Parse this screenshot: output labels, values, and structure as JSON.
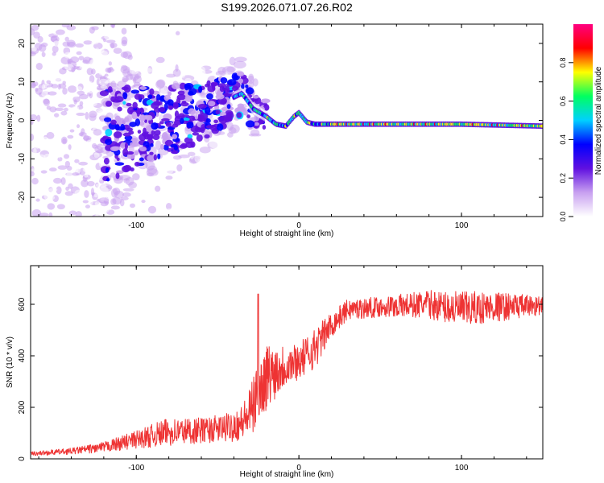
{
  "title": "S199.2026.071.07.26.R02",
  "chart_data": [
    {
      "type": "heatmap",
      "name": "spectrogram",
      "xlabel": "Height of straight line (km)",
      "ylabel": "Frequency (Hz)",
      "xlim": [
        -165,
        150
      ],
      "ylim": [
        -25,
        25
      ],
      "xticks": [
        -100,
        0,
        100
      ],
      "yticks": [
        -20,
        -10,
        0,
        10,
        20
      ],
      "ridge": {
        "description_points_x": [
          -130,
          -100,
          -80,
          -60,
          -40,
          -35,
          -28,
          -20,
          -14,
          -8,
          -3,
          0,
          5,
          10,
          20,
          50,
          100,
          150
        ],
        "description_points_y": [
          -5,
          -2,
          0,
          2,
          6,
          7,
          3,
          1,
          -1,
          -1.5,
          1,
          2,
          -0.5,
          -1,
          -1,
          -1,
          -1,
          -1.5
        ]
      }
    },
    {
      "type": "line",
      "name": "snr",
      "xlabel": "Height of straight line (km)",
      "ylabel": "SNR (10 * v/v)",
      "xlim": [
        -165,
        150
      ],
      "ylim": [
        0,
        750
      ],
      "xticks": [
        -100,
        0,
        100
      ],
      "yticks": [
        0,
        200,
        400,
        600
      ],
      "series": [
        {
          "name": "SNR",
          "color": "#ee3333",
          "trend_x": [
            -165,
            -140,
            -120,
            -100,
            -80,
            -60,
            -45,
            -35,
            -30,
            -25,
            -20,
            -10,
            0,
            10,
            20,
            30,
            50,
            80,
            100,
            120,
            150
          ],
          "trend_y": [
            20,
            30,
            45,
            75,
            105,
            110,
            120,
            140,
            180,
            250,
            320,
            360,
            380,
            430,
            520,
            580,
            590,
            600,
            580,
            590,
            595
          ],
          "spread_y": [
            8,
            12,
            20,
            35,
            55,
            50,
            55,
            70,
            100,
            120,
            130,
            90,
            70,
            80,
            50,
            40,
            40,
            55,
            70,
            60,
            35
          ]
        }
      ]
    }
  ],
  "colorbar": {
    "label": "Normalized spectral amplitude",
    "range": [
      0,
      1
    ],
    "ticks": [
      "0.0",
      "0.2",
      "0.4",
      "0.6",
      "0.8"
    ],
    "tick_values": [
      0,
      0.2,
      0.4,
      0.6,
      0.8
    ],
    "colors": [
      "#ffffff",
      "#c8a0f0",
      "#6010e0",
      "#0000ff",
      "#00d0ff",
      "#00ff60",
      "#ffff00",
      "#ff0000",
      "#ff0080"
    ]
  }
}
